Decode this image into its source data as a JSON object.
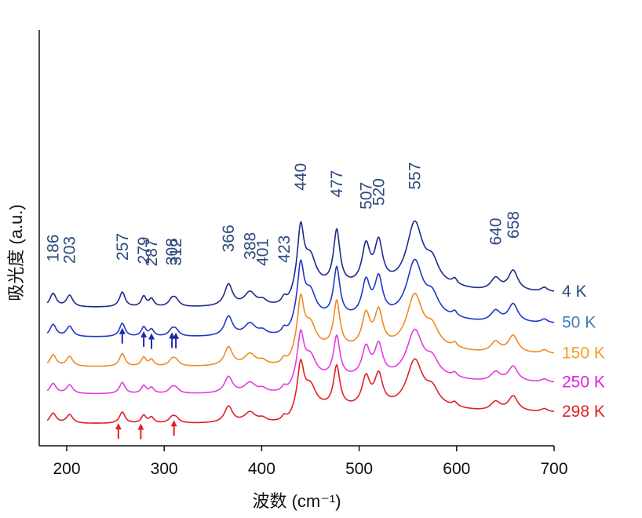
{
  "chart_data": {
    "type": "line",
    "title": "",
    "xlabel": "波数 (cm⁻¹)",
    "ylabel": "吸光度 (a.u.)",
    "xlim": [
      175,
      700
    ],
    "xticks": [
      200,
      300,
      400,
      500,
      600,
      700
    ],
    "y_ticks_shown": false,
    "grid": false,
    "legend": "inline labels at right end of each trace",
    "peak_labels": [
      "186",
      "203",
      "257",
      "279",
      "287",
      "308",
      "312",
      "366",
      "388",
      "401",
      "423",
      "440",
      "477",
      "507",
      "520",
      "557",
      "640",
      "658"
    ],
    "peak_label_color": "#2e4a7d",
    "peaks": [
      {
        "x": 186,
        "h": 1.0,
        "w": 4
      },
      {
        "x": 203,
        "h": 0.85,
        "w": 4
      },
      {
        "x": 257,
        "h": 1.1,
        "w": 3.5
      },
      {
        "x": 279,
        "h": 0.75,
        "w": 3
      },
      {
        "x": 287,
        "h": 0.55,
        "w": 3
      },
      {
        "x": 308,
        "h": 0.5,
        "w": 4
      },
      {
        "x": 312,
        "h": 0.45,
        "w": 4
      },
      {
        "x": 366,
        "h": 1.6,
        "w": 5
      },
      {
        "x": 388,
        "h": 1.0,
        "w": 7
      },
      {
        "x": 401,
        "h": 0.35,
        "w": 5
      },
      {
        "x": 423,
        "h": 0.45,
        "w": 3
      },
      {
        "x": 440,
        "h": 4.2,
        "w": 4
      },
      {
        "x": 450,
        "h": 2.0,
        "w": 7
      },
      {
        "x": 477,
        "h": 4.0,
        "w": 4
      },
      {
        "x": 507,
        "h": 2.8,
        "w": 5
      },
      {
        "x": 520,
        "h": 3.0,
        "w": 5
      },
      {
        "x": 557,
        "h": 4.6,
        "w": 10
      },
      {
        "x": 575,
        "h": 1.5,
        "w": 8
      },
      {
        "x": 598,
        "h": 0.4,
        "w": 3
      },
      {
        "x": 640,
        "h": 0.9,
        "w": 6
      },
      {
        "x": 658,
        "h": 1.5,
        "w": 6
      },
      {
        "x": 690,
        "h": 0.3,
        "w": 4
      }
    ],
    "series": [
      {
        "name": "4 K",
        "color": "#1c2a8c",
        "offset": 4.7,
        "scale": 1.0
      },
      {
        "name": "50 K",
        "color": "#2036cc",
        "offset": 3.5,
        "scale": 0.9
      },
      {
        "name": "150 K",
        "color": "#ef8a22",
        "offset": 2.3,
        "scale": 0.85
      },
      {
        "name": "250 K",
        "color": "#e33be3",
        "offset": 1.2,
        "scale": 0.75
      },
      {
        "name": "298 K",
        "color": "#e02222",
        "offset": 0.0,
        "scale": 0.75
      }
    ],
    "label_colors": {
      "4 K": "#2e4a7d",
      "50 K": "#3b7fb8",
      "150 K": "#f0a020",
      "250 K": "#e020e0",
      "298 K": "#e02222"
    },
    "arrow_markers": [
      {
        "series": "50 K",
        "x": [
          257,
          279,
          287,
          308,
          312
        ],
        "color": "#1c2aa8"
      },
      {
        "series": "298 K",
        "x": [
          253,
          276,
          310
        ],
        "color": "#e02222"
      }
    ]
  }
}
